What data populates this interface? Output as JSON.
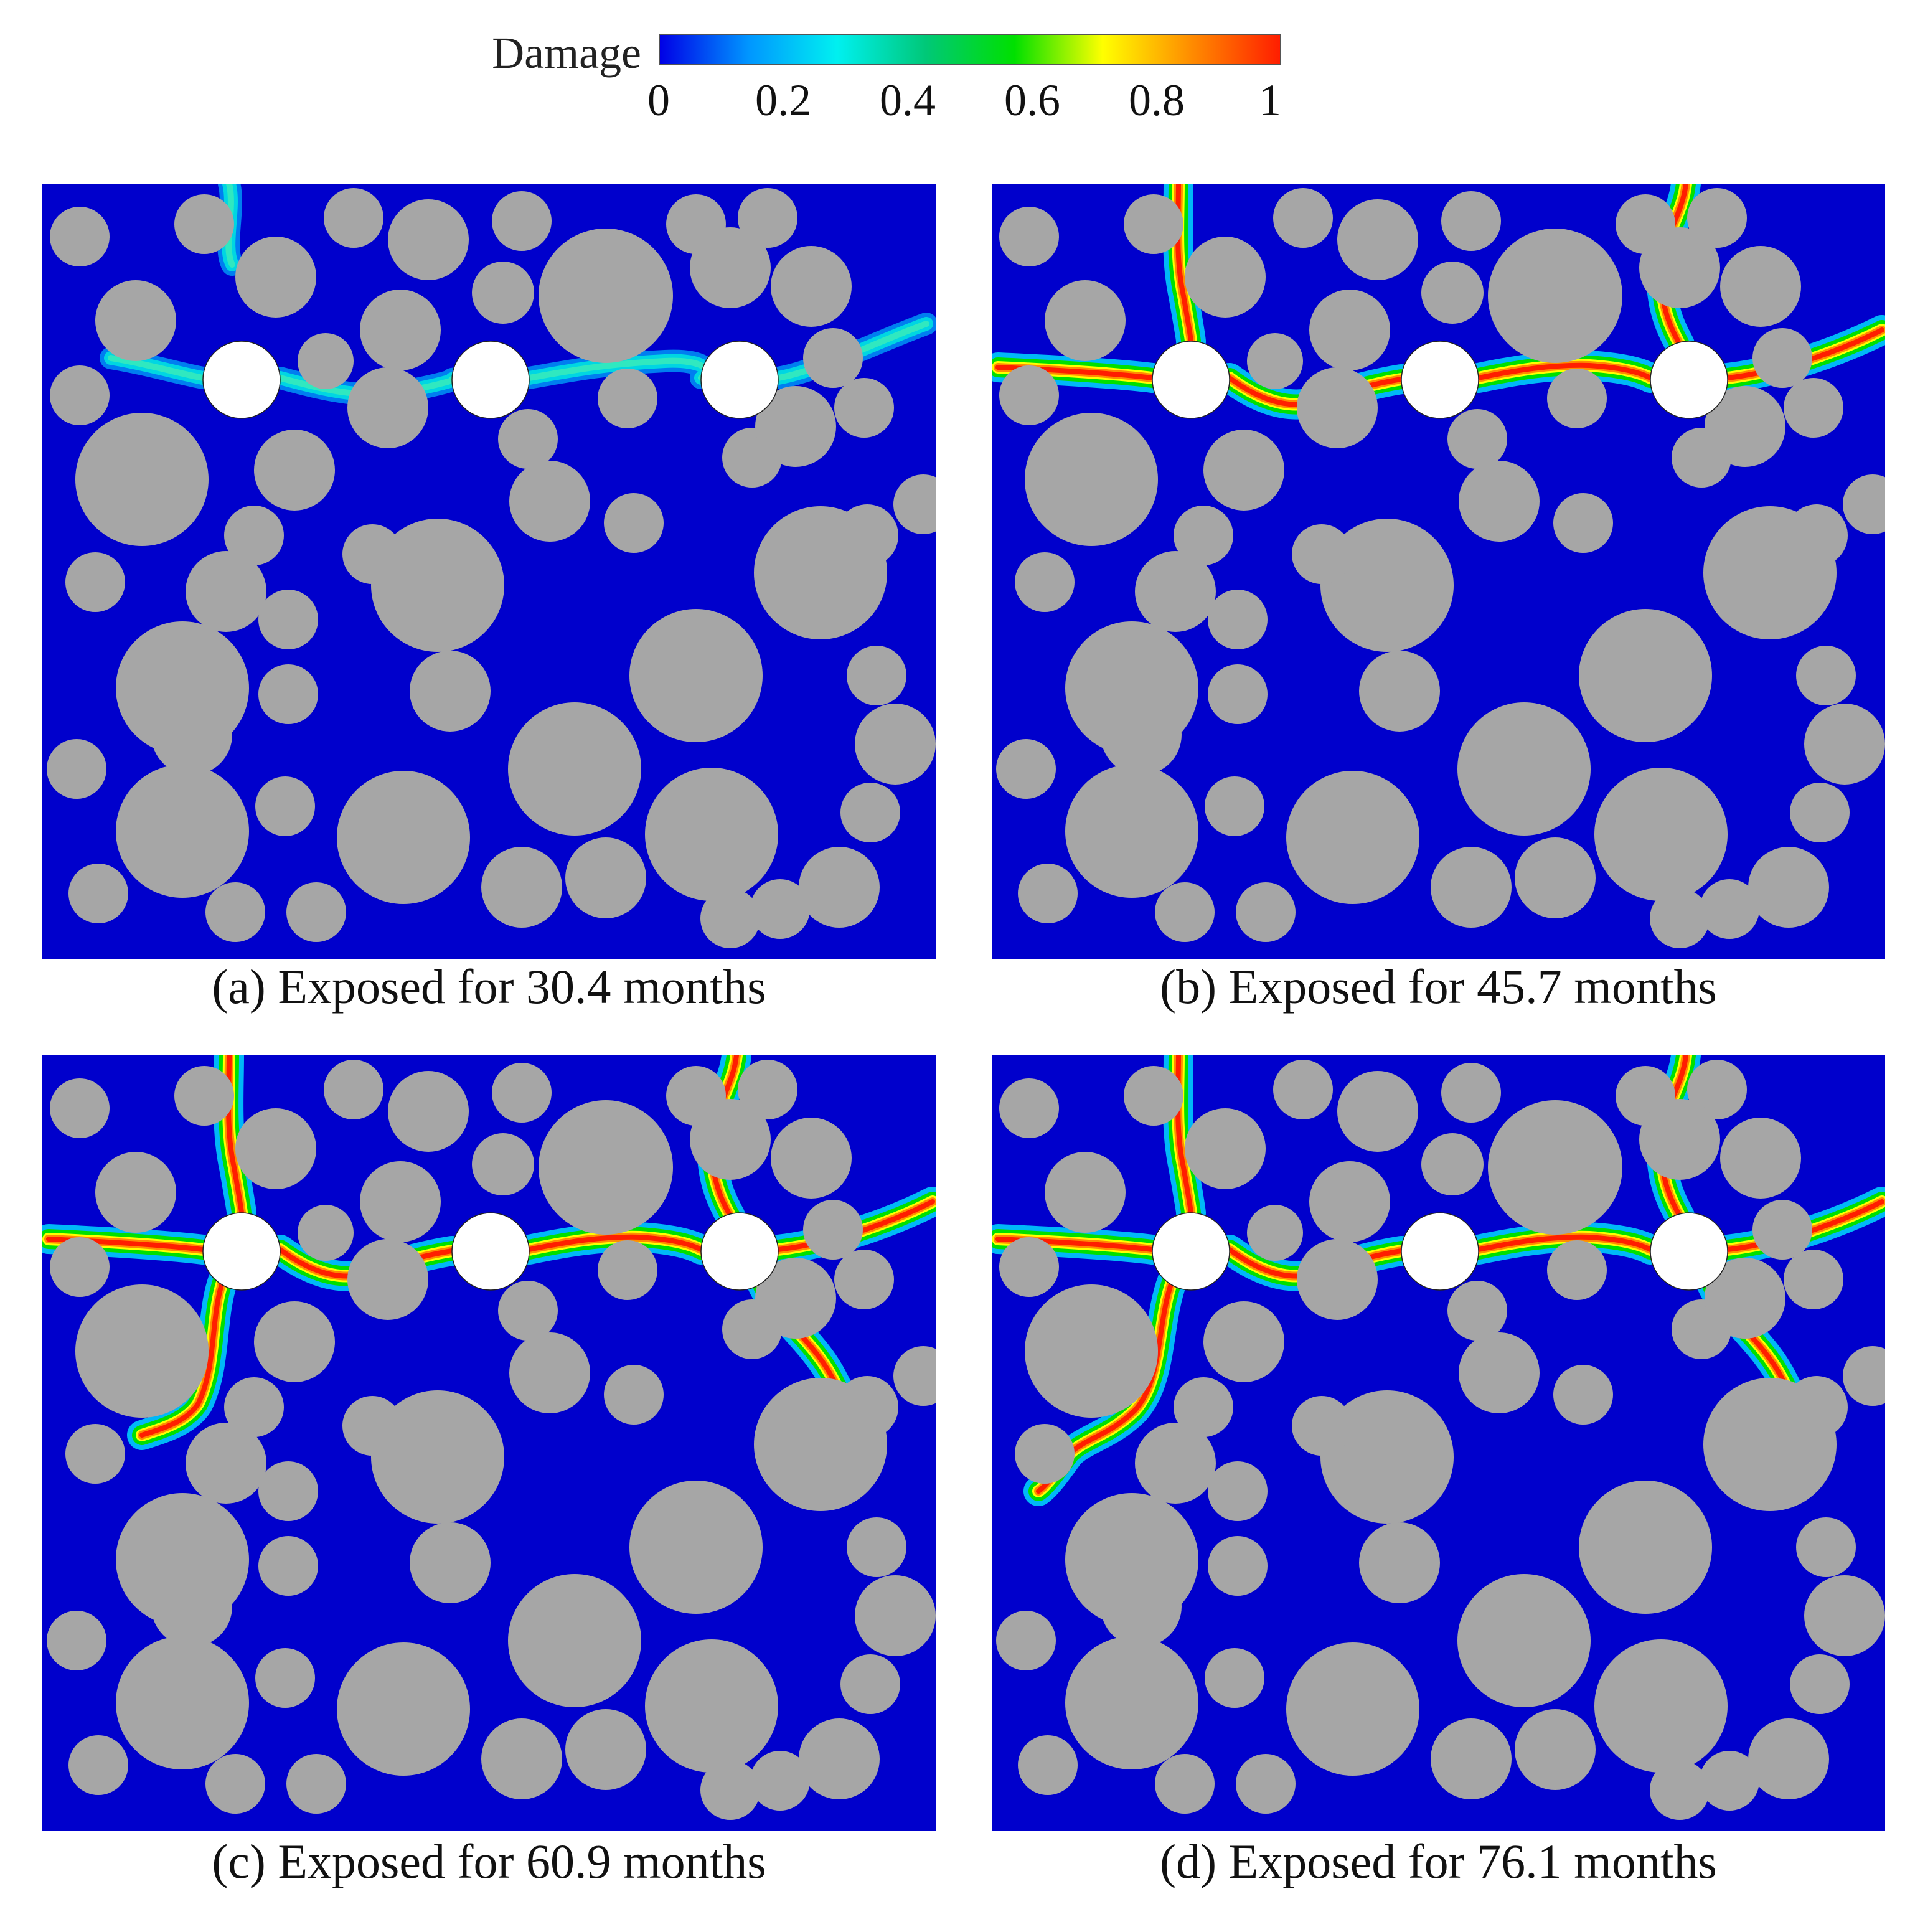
{
  "legend": {
    "title": "Damage",
    "ticks": [
      "0",
      "0.2",
      "0.4",
      "0.6",
      "0.8",
      "1"
    ],
    "colors": [
      "#0000e6",
      "#0096ff",
      "#00f0f0",
      "#00c878",
      "#00e000",
      "#ffff00",
      "#ff8c00",
      "#ff1e00"
    ]
  },
  "colors": {
    "matrix": "#0000cc",
    "aggregate": "#a6a6a6",
    "hole": "#ffffff"
  },
  "panels": [
    {
      "caption": "(a) Exposed for 30.4 months",
      "damage_level": 0.4
    },
    {
      "caption": "(b) Exposed for 45.7 months",
      "damage_level": 0.85
    },
    {
      "caption": "(c) Exposed for 60.9 months",
      "damage_level": 0.95
    },
    {
      "caption": "(d) Exposed for 76.1 months",
      "damage_level": 1.0
    }
  ]
}
